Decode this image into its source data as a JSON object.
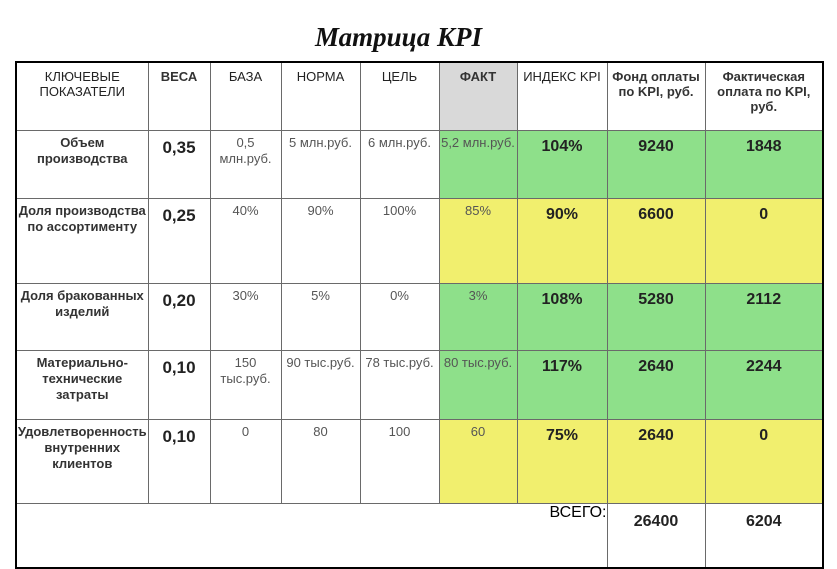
{
  "title": "Матрица KPI",
  "headers": [
    "КЛЮЧЕВЫЕ ПОКАЗАТЕЛИ",
    "ВЕСА",
    "БАЗА",
    "НОРМА",
    "ЦЕЛЬ",
    "ФАКТ",
    "ИНДЕКС KPI",
    "Фонд оплаты по KPI, руб.",
    "Фактическая оплата по KPI, руб."
  ],
  "rows": [
    {
      "name": "Объем производства",
      "weight": "0,35",
      "base": "0,5 млн.руб.",
      "norm": "5 млн.руб.",
      "target": "6 млн.руб.",
      "fact": "5,2 млн.руб.",
      "index": "104%",
      "fund": "9240",
      "paid": "1848"
    },
    {
      "name": "Доля производства по ассортименту",
      "weight": "0,25",
      "base": "40%",
      "norm": "90%",
      "target": "100%",
      "fact": "85%",
      "index": "90%",
      "fund": "6600",
      "paid": "0"
    },
    {
      "name": "Доля бракованных изделий",
      "weight": "0,20",
      "base": "30%",
      "norm": "5%",
      "target": "0%",
      "fact": "3%",
      "index": "108%",
      "fund": "5280",
      "paid": "2112"
    },
    {
      "name": "Материально-технические затраты",
      "weight": "0,10",
      "base": "150 тыс.руб.",
      "norm": "90 тыс.руб.",
      "target": "78 тыс.руб.",
      "fact": "80 тыс.руб.",
      "index": "117%",
      "fund": "2640",
      "paid": "2244"
    },
    {
      "name": "Удовлетворенность внутренних клиентов",
      "weight": "0,10",
      "base": "0",
      "norm": "80",
      "target": "100",
      "fact": "60",
      "index": "75%",
      "fund": "2640",
      "paid": "0"
    }
  ],
  "total": {
    "label": "ВСЕГО:",
    "fund": "26400",
    "paid": "6204"
  },
  "colors": {
    "green": "#8ee08a",
    "yellow": "#f1ef6e",
    "gray": "#d9d9d9"
  }
}
